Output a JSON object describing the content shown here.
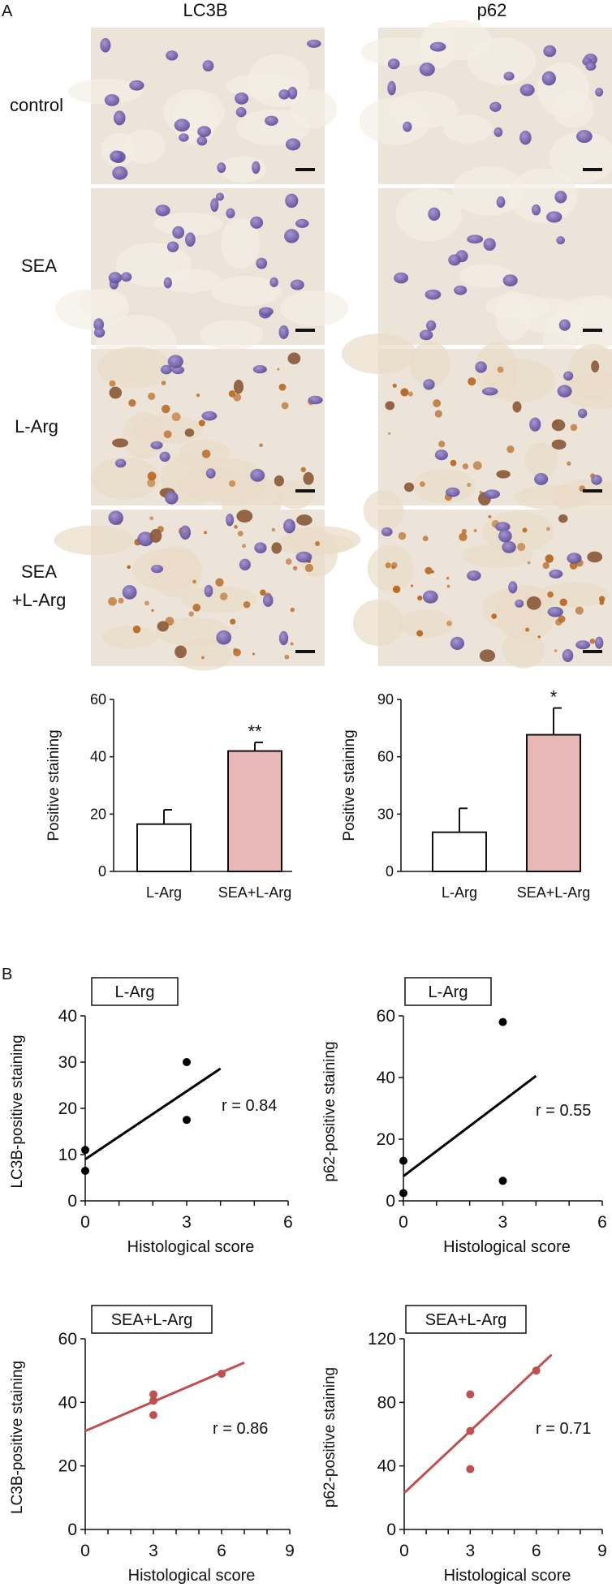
{
  "panel_a": {
    "label": "A",
    "col_labels": [
      "LC3B",
      "p62"
    ],
    "row_labels": [
      [
        "control"
      ],
      [
        "SEA"
      ],
      [
        "L-Arg"
      ],
      [
        "SEA",
        "+L-Arg"
      ]
    ]
  },
  "panel_b": {
    "label": "B"
  },
  "colors": {
    "bar_open": "#ffffff",
    "bar_filled": "#e8b8b8",
    "lArg_series": "#000000",
    "seaLArg_series": "#c0504d",
    "tissue_bg": "#ece4d8",
    "nucleus": "#7a66b3",
    "brown_stain": "#b5651d"
  },
  "chart_data": [
    {
      "type": "bar",
      "ylabel": "Positive staining",
      "categories": [
        "L-Arg",
        "SEA+L-Arg"
      ],
      "values": [
        16.5,
        42
      ],
      "errors": [
        5,
        3
      ],
      "significance": [
        "",
        "**"
      ],
      "ylim": [
        0,
        60
      ],
      "yticks": [
        0,
        20,
        40,
        60
      ]
    },
    {
      "type": "bar",
      "ylabel": "Positive staining",
      "categories": [
        "L-Arg",
        "SEA+L-Arg"
      ],
      "values": [
        20.5,
        71.5
      ],
      "errors": [
        12.5,
        14
      ],
      "significance": [
        "",
        "*"
      ],
      "ylim": [
        0,
        90
      ],
      "yticks": [
        0,
        30,
        60,
        90
      ]
    },
    {
      "type": "scatter",
      "legend": "L-Arg",
      "xlabel": "Histological score",
      "ylabel": "LC3B-positive staining",
      "points": [
        [
          0,
          11
        ],
        [
          0,
          6.5
        ],
        [
          3,
          30
        ],
        [
          3,
          17.5
        ]
      ],
      "fit": [
        [
          0,
          9
        ],
        [
          4,
          28.6
        ]
      ],
      "r_text": "r = 0.84",
      "xlim": [
        0,
        6
      ],
      "xticks": [
        0,
        3,
        6
      ],
      "ylim": [
        0,
        40
      ],
      "yticks": [
        0,
        10,
        20,
        30,
        40
      ],
      "series_color": "#000000"
    },
    {
      "type": "scatter",
      "legend": "L-Arg",
      "xlabel": "Histological score",
      "ylabel": "p62-positive staining",
      "points": [
        [
          0,
          13
        ],
        [
          0,
          2.5
        ],
        [
          3,
          58
        ],
        [
          3,
          6.5
        ]
      ],
      "fit": [
        [
          0,
          8
        ],
        [
          4,
          40.5
        ]
      ],
      "r_text": "r = 0.55",
      "xlim": [
        0,
        6
      ],
      "xticks": [
        0,
        3,
        6
      ],
      "ylim": [
        0,
        60
      ],
      "yticks": [
        0,
        20,
        40,
        60
      ],
      "series_color": "#000000"
    },
    {
      "type": "scatter",
      "legend": "SEA+L-Arg",
      "xlabel": "Histological score",
      "ylabel": "LC3B-positive staining",
      "points": [
        [
          3,
          42.5
        ],
        [
          3,
          40.5
        ],
        [
          3,
          36
        ],
        [
          6,
          49
        ]
      ],
      "fit": [
        [
          0,
          31
        ],
        [
          7,
          52.5
        ]
      ],
      "r_text": "r = 0.86",
      "xlim": [
        0,
        9
      ],
      "xticks": [
        0,
        3,
        6,
        9
      ],
      "ylim": [
        0,
        60
      ],
      "yticks": [
        0,
        20,
        40,
        60
      ],
      "series_color": "#c0504d"
    },
    {
      "type": "scatter",
      "legend": "SEA+L-Arg",
      "xlabel": "Histological score",
      "ylabel": "p62-positive staining",
      "points": [
        [
          3,
          85
        ],
        [
          3,
          62
        ],
        [
          3,
          38
        ],
        [
          6,
          100
        ]
      ],
      "fit": [
        [
          0,
          23
        ],
        [
          6.7,
          110
        ]
      ],
      "r_text": "r = 0.71",
      "xlim": [
        0,
        9
      ],
      "xticks": [
        0,
        3,
        6,
        9
      ],
      "ylim": [
        0,
        120
      ],
      "yticks": [
        0,
        40,
        80,
        120
      ],
      "series_color": "#c0504d"
    }
  ]
}
